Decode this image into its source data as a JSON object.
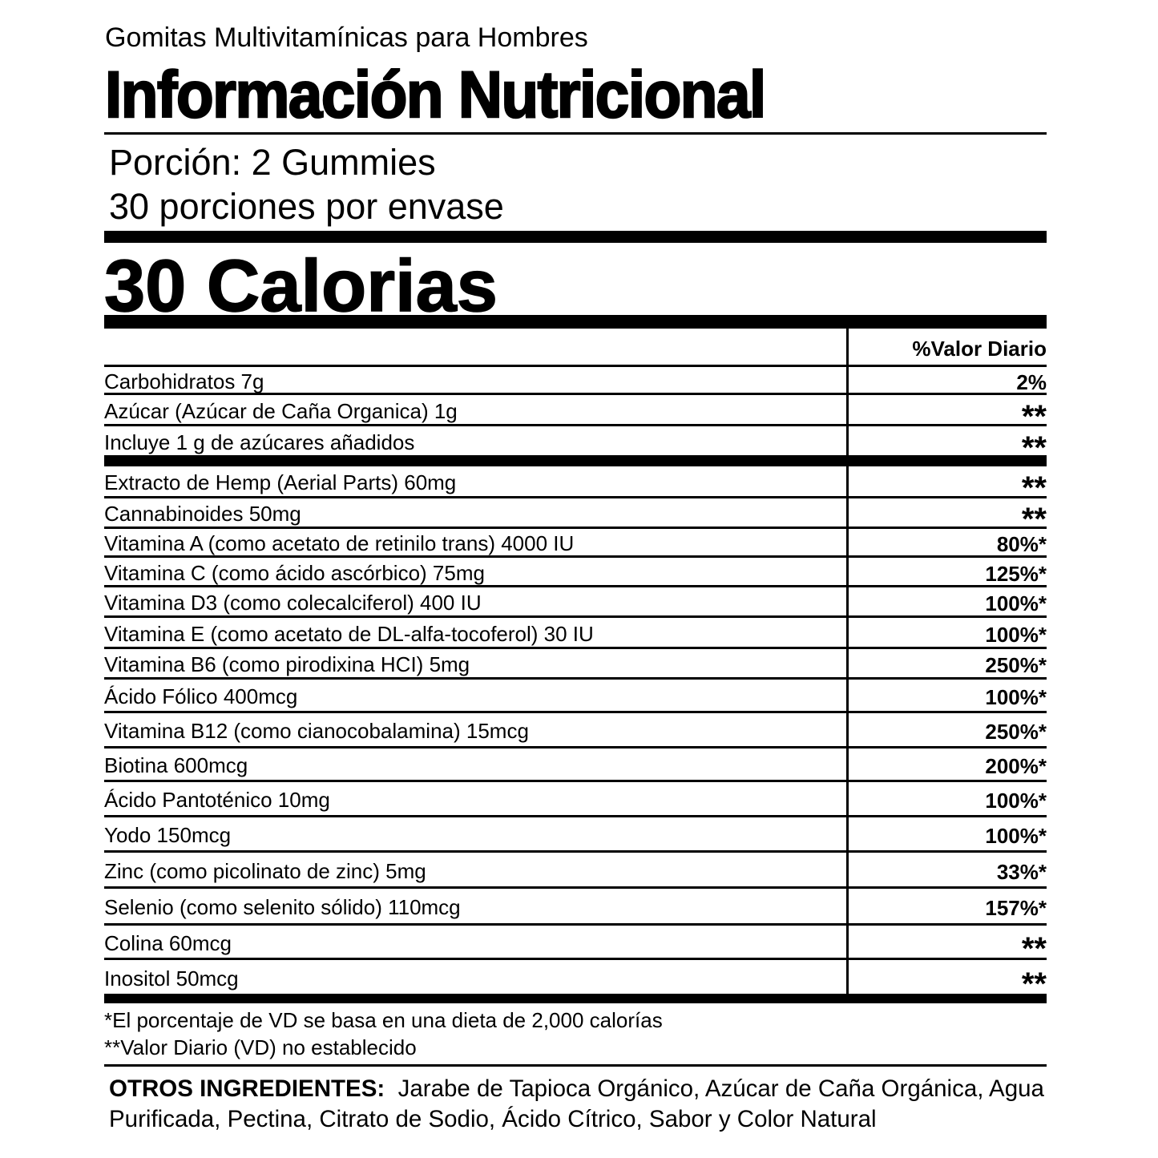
{
  "header": {
    "subtitle": "Gomitas Multivitamínicas para Hombres",
    "title": "Información Nutricional",
    "serving_size": "Porción: 2 Gummies",
    "servings_per_container": "30 porciones por envase",
    "calories": "30 Calorias"
  },
  "table": {
    "dv_header": "%Valor Diario",
    "rows": [
      {
        "label": "Carbohidratos 7g",
        "dv": "2%"
      },
      {
        "label": "Azúcar (Azúcar de Caña Organica) 1g",
        "dv": "**"
      },
      {
        "label": "Incluye 1 g de azúcares añadidos",
        "dv": "**"
      },
      {
        "label": "Extracto de Hemp (Aerial Parts) 60mg",
        "dv": "**"
      },
      {
        "label": "Cannabinoides 50mg",
        "dv": "**"
      },
      {
        "label": "Vitamina A (como acetato de retinilo trans) 4000 IU",
        "dv": "80%*"
      },
      {
        "label": "Vitamina C (como ácido ascórbico) 75mg",
        "dv": "125%*"
      },
      {
        "label": "Vitamina D3 (como colecalciferol) 400 IU",
        "dv": "100%*"
      },
      {
        "label": "Vitamina E (como acetato de DL-alfa-tocoferol) 30 IU",
        "dv": "100%*"
      },
      {
        "label": "Vitamina B6 (como pirodixina HCI) 5mg",
        "dv": "250%*"
      },
      {
        "label": "Ácido Fólico 400mcg",
        "dv": "100%*"
      },
      {
        "label": "Vitamina B12 (como cianocobalamina) 15mcg",
        "dv": "250%*"
      },
      {
        "label": "Biotina 600mcg",
        "dv": "200%*"
      },
      {
        "label": "Ácido Pantoténico 10mg",
        "dv": "100%*"
      },
      {
        "label": "Yodo 150mcg",
        "dv": "100%*"
      },
      {
        "label": "Zinc (como picolinato de zinc) 5mg",
        "dv": "33%*"
      },
      {
        "label": "Selenio (como selenito sólido) 110mcg",
        "dv": "157%*"
      },
      {
        "label": "Colina 60mcg",
        "dv": "**"
      },
      {
        "label": "Inositol 50mcg",
        "dv": "**"
      }
    ]
  },
  "footnotes": {
    "dv_note": "*El porcentaje de VD se basa en una dieta de 2,000 calorías",
    "not_established": "**Valor Diario (VD) no establecido"
  },
  "other_ingredients": {
    "label": "OTROS INGREDIENTES:",
    "text": "Jarabe de Tapioca Orgánico, Azúcar de Caña Orgánica, Agua Purificada, Pectina, Citrato de Sodio, Ácido Cítrico, Sabor y Color Natural"
  }
}
